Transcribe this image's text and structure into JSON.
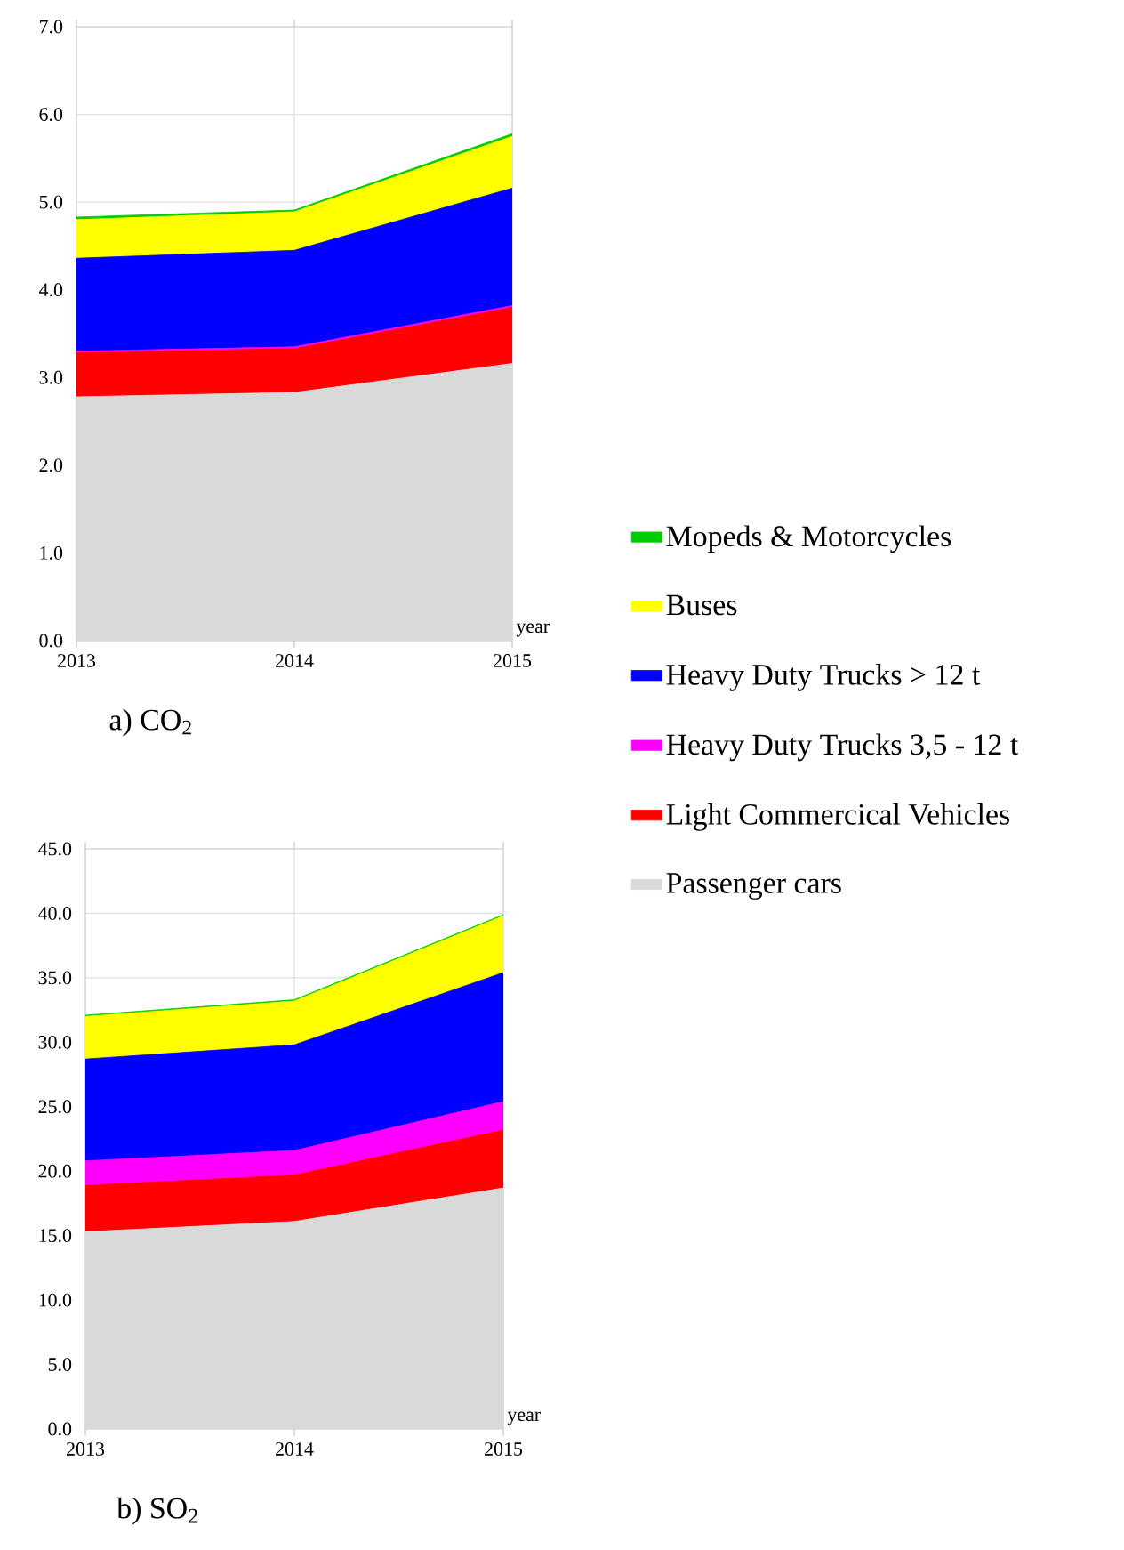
{
  "chart_data": [
    {
      "type": "area",
      "stacked": true,
      "title": "a)     CO$_{2}$",
      "xlabel": "year",
      "x": [
        2013,
        2014,
        2015
      ],
      "xlim": [
        2013,
        2015
      ],
      "xticks": [
        2013,
        2014,
        2015
      ],
      "ylim": [
        0,
        7
      ],
      "yticks": [
        {
          "value": 0,
          "label": "0.0"
        },
        {
          "value": 1,
          "label": "1.0"
        },
        {
          "value": 2,
          "label": "2.0"
        },
        {
          "value": 3,
          "label": "3.0"
        },
        {
          "value": 4,
          "label": "4.0"
        },
        {
          "value": 5,
          "label": "5.0"
        },
        {
          "value": 6,
          "label": "6.0"
        },
        {
          "value": 7,
          "label": "7.0"
        }
      ],
      "grid": true,
      "legend": "right",
      "series": [
        {
          "name": "Passenger cars",
          "color": "#d9d9d9",
          "values": [
            2.78,
            2.83,
            3.16
          ]
        },
        {
          "name": "Light Commercical Vehicles",
          "color": "#ff0000",
          "values": [
            0.5,
            0.5,
            0.64
          ]
        },
        {
          "name": "Heavy Duty Trucks 3,5 - 12 t",
          "color": "#ff00ff",
          "values": [
            0.02,
            0.02,
            0.02
          ]
        },
        {
          "name": "Heavy Duty Trucks > 12 t",
          "color": "#0000ff",
          "values": [
            1.06,
            1.1,
            1.34
          ]
        },
        {
          "name": "Buses",
          "color": "#ffff00",
          "values": [
            0.44,
            0.44,
            0.59
          ]
        },
        {
          "name": "Mopeds & Motorcycles",
          "color": "#00cc00",
          "values": [
            0.03,
            0.02,
            0.03
          ]
        }
      ]
    },
    {
      "type": "area",
      "stacked": true,
      "title": "b)     SO$_{2}$",
      "xlabel": "year",
      "x": [
        2013,
        2014,
        2015
      ],
      "xlim": [
        2013,
        2015
      ],
      "xticks": [
        2013,
        2014,
        2015
      ],
      "ylim": [
        0,
        45
      ],
      "yticks": [
        {
          "value": 0,
          "label": "0.0"
        },
        {
          "value": 5,
          "label": "5.0"
        },
        {
          "value": 10,
          "label": "10.0"
        },
        {
          "value": 15,
          "label": "15.0"
        },
        {
          "value": 20,
          "label": "20.0"
        },
        {
          "value": 25,
          "label": "25.0"
        },
        {
          "value": 30,
          "label": "30.0"
        },
        {
          "value": 35,
          "label": "35.0"
        },
        {
          "value": 40,
          "label": "40.0"
        },
        {
          "value": 45,
          "label": "45.0"
        }
      ],
      "grid": true,
      "series": [
        {
          "color": "#d9d9d9",
          "values": [
            15.3,
            16.1,
            18.7
          ]
        },
        {
          "color": "#ff0000",
          "values": [
            3.6,
            3.6,
            4.5
          ]
        },
        {
          "color": "#ff00ff",
          "values": [
            1.9,
            1.9,
            2.2
          ]
        },
        {
          "color": "#0000ff",
          "values": [
            7.9,
            8.2,
            10.0
          ]
        },
        {
          "color": "#ffff00",
          "values": [
            3.3,
            3.4,
            4.4
          ]
        },
        {
          "color": "#00cc00",
          "values": [
            0.1,
            0.1,
            0.1
          ]
        }
      ]
    }
  ]
}
